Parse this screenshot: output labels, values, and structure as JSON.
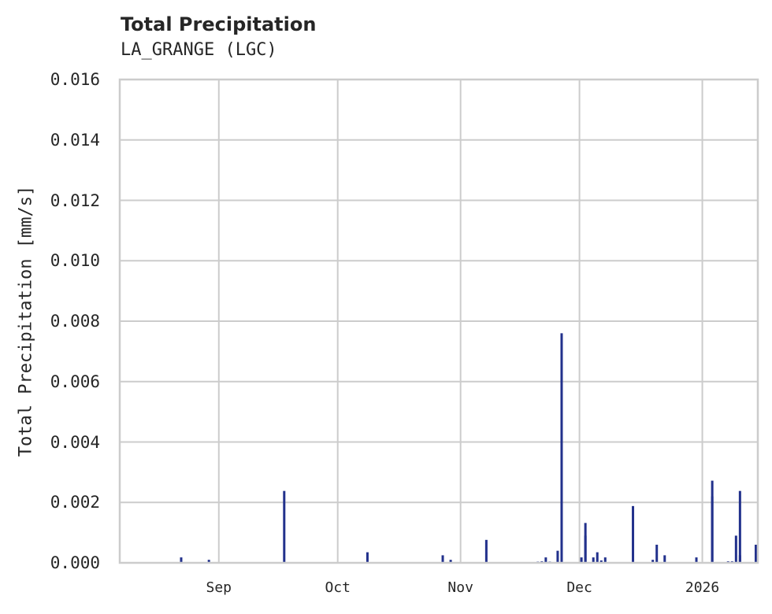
{
  "chart_data": {
    "type": "bar",
    "title": "Total Precipitation",
    "subtitle": "LA_GRANGE (LGC)",
    "xlabel": "",
    "ylabel": "Total Precipitation [mm/s]",
    "ylim": [
      0,
      0.016
    ],
    "xlim": [
      "2025-08-07",
      "2026-01-15"
    ],
    "grid": true,
    "legend": "none",
    "color": "#22318c",
    "y_ticks": [
      "0.000",
      "0.002",
      "0.004",
      "0.006",
      "0.008",
      "0.010",
      "0.012",
      "0.014",
      "0.016"
    ],
    "x_ticks": [
      {
        "label": "Sep",
        "date": "2025-09-01"
      },
      {
        "label": "Oct",
        "date": "2025-10-01"
      },
      {
        "label": "Nov",
        "date": "2025-11-01"
      },
      {
        "label": "Dec",
        "date": "2025-12-01"
      },
      {
        "label": "2026",
        "date": "2026-01-01"
      }
    ],
    "points": [
      {
        "date": "2025-08-22",
        "value": 0.00018
      },
      {
        "date": "2025-08-29",
        "value": 0.0001
      },
      {
        "date": "2025-09-17",
        "value": 0.00238
      },
      {
        "date": "2025-10-08",
        "value": 0.00035
      },
      {
        "date": "2025-10-27",
        "value": 0.00025
      },
      {
        "date": "2025-10-29",
        "value": 0.0001
      },
      {
        "date": "2025-11-07",
        "value": 0.00076
      },
      {
        "date": "2025-11-20",
        "value": 4e-05
      },
      {
        "date": "2025-11-21",
        "value": 5e-05
      },
      {
        "date": "2025-11-22",
        "value": 0.00018
      },
      {
        "date": "2025-11-23",
        "value": 4e-05
      },
      {
        "date": "2025-11-25",
        "value": 0.0004
      },
      {
        "date": "2025-11-26",
        "value": 0.0076
      },
      {
        "date": "2025-12-01",
        "value": 0.00018
      },
      {
        "date": "2025-12-02",
        "value": 0.0009
      },
      {
        "date": "2025-12-02",
        "value": 0.00132
      },
      {
        "date": "2025-12-04",
        "value": 0.00018
      },
      {
        "date": "2025-12-05",
        "value": 0.00035
      },
      {
        "date": "2025-12-06",
        "value": 8e-05
      },
      {
        "date": "2025-12-07",
        "value": 0.00018
      },
      {
        "date": "2025-12-14",
        "value": 0.00188
      },
      {
        "date": "2025-12-19",
        "value": 0.0001
      },
      {
        "date": "2025-12-20",
        "value": 0.0006
      },
      {
        "date": "2025-12-22",
        "value": 0.00025
      },
      {
        "date": "2025-12-30",
        "value": 0.00018
      },
      {
        "date": "2026-01-03",
        "value": 0.0022
      },
      {
        "date": "2026-01-03",
        "value": 0.00272
      },
      {
        "date": "2026-01-07",
        "value": 5e-05
      },
      {
        "date": "2026-01-08",
        "value": 5e-05
      },
      {
        "date": "2026-01-09",
        "value": 0.0009
      },
      {
        "date": "2026-01-10",
        "value": 0.00238
      },
      {
        "date": "2026-01-10",
        "value": 0.00025
      },
      {
        "date": "2026-01-14",
        "value": 0.0006
      }
    ]
  }
}
